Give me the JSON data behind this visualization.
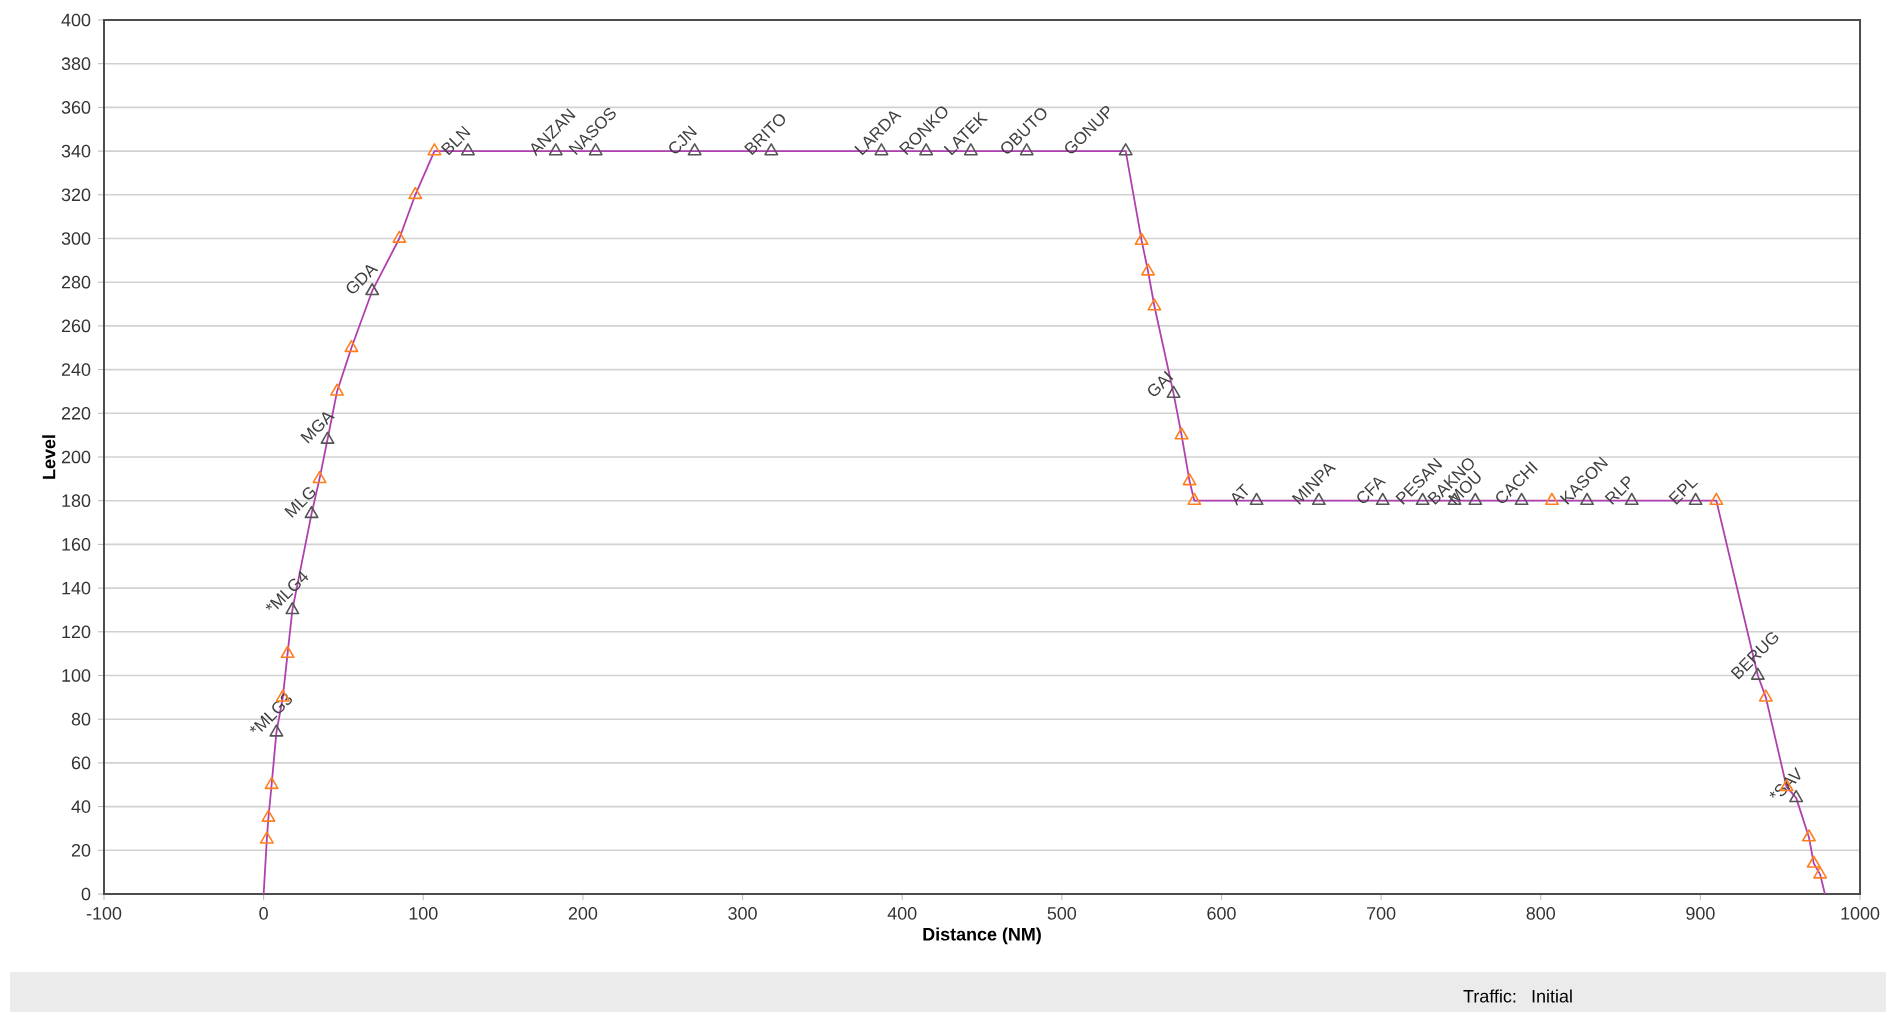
{
  "chart_data": {
    "type": "line",
    "xlabel": "Distance (NM)",
    "ylabel": "Level",
    "xlim": [
      -100,
      1000
    ],
    "xticks": [
      -100,
      0,
      100,
      200,
      300,
      400,
      500,
      600,
      700,
      800,
      900,
      1000
    ],
    "ylim": [
      0,
      400
    ],
    "yticks": [
      0,
      20,
      40,
      60,
      80,
      100,
      120,
      140,
      160,
      180,
      200,
      220,
      240,
      260,
      280,
      300,
      320,
      340,
      360,
      380,
      400
    ],
    "grid": "y",
    "series": [
      {
        "type": "line",
        "marker": "none",
        "color": "#b040b0",
        "x": [
          0,
          2,
          3,
          5,
          8,
          12,
          15,
          18,
          30,
          35,
          40,
          46,
          55,
          68,
          85,
          95,
          107,
          540,
          550,
          554,
          558,
          570,
          575,
          580,
          583,
          910,
          936,
          941,
          954,
          960,
          968,
          971,
          975,
          978
        ],
        "values": [
          0,
          25,
          35,
          50,
          74,
          90,
          110,
          130,
          174,
          190,
          208,
          230,
          250,
          276,
          300,
          320,
          340,
          340,
          299,
          285,
          269,
          229,
          210,
          189,
          180,
          180,
          100,
          90,
          49,
          44,
          26,
          14,
          9,
          0
        ]
      },
      {
        "type": "scatter",
        "marker": "triangle",
        "color": "#555555",
        "x": [
          8,
          18,
          30,
          40,
          68,
          128,
          183,
          208,
          270,
          318,
          387,
          415,
          443,
          478,
          540,
          570,
          622,
          661,
          701,
          726,
          746,
          759,
          788,
          829,
          857,
          897,
          936,
          960
        ],
        "values": [
          74,
          130,
          174,
          208,
          276,
          340,
          340,
          340,
          340,
          340,
          340,
          340,
          340,
          340,
          340,
          229,
          180,
          180,
          180,
          180,
          180,
          180,
          180,
          180,
          180,
          180,
          100,
          44
        ]
      },
      {
        "type": "scatter",
        "marker": "triangle",
        "color": "#ff7f1e",
        "x": [
          2,
          3,
          5,
          12,
          15,
          35,
          46,
          55,
          85,
          95,
          107,
          550,
          554,
          558,
          575,
          580,
          583,
          807,
          910,
          941,
          954,
          968,
          971,
          975
        ],
        "values": [
          25,
          35,
          50,
          90,
          110,
          190,
          230,
          250,
          300,
          320,
          340,
          299,
          285,
          269,
          210,
          189,
          180,
          180,
          180,
          90,
          49,
          26,
          14,
          9
        ]
      }
    ],
    "annotations": [
      {
        "text": "*MLG3",
        "x": 8,
        "y": 74
      },
      {
        "text": "*MLG4",
        "x": 18,
        "y": 130
      },
      {
        "text": "MLG",
        "x": 30,
        "y": 174
      },
      {
        "text": "MGA",
        "x": 40,
        "y": 208
      },
      {
        "text": "GDA",
        "x": 68,
        "y": 276
      },
      {
        "text": "BLN",
        "x": 128,
        "y": 340
      },
      {
        "text": "ANZAN",
        "x": 183,
        "y": 340
      },
      {
        "text": "NASOS",
        "x": 208,
        "y": 340
      },
      {
        "text": "CJN",
        "x": 270,
        "y": 340
      },
      {
        "text": "BRITO",
        "x": 318,
        "y": 340
      },
      {
        "text": "LARDA",
        "x": 387,
        "y": 340
      },
      {
        "text": "RONKO",
        "x": 415,
        "y": 340
      },
      {
        "text": "LATEK",
        "x": 443,
        "y": 340
      },
      {
        "text": "OBUTO",
        "x": 478,
        "y": 340
      },
      {
        "text": "GONUP",
        "x": 518,
        "y": 340
      },
      {
        "text": "GAI",
        "x": 570,
        "y": 229
      },
      {
        "text": "AT",
        "x": 622,
        "y": 180
      },
      {
        "text": "MINPA",
        "x": 661,
        "y": 180
      },
      {
        "text": "CFA",
        "x": 701,
        "y": 180
      },
      {
        "text": "PESAN",
        "x": 726,
        "y": 180
      },
      {
        "text": "BAKNO",
        "x": 746,
        "y": 180
      },
      {
        "text": "MOU",
        "x": 759,
        "y": 180
      },
      {
        "text": "CACHI",
        "x": 788,
        "y": 180
      },
      {
        "text": "KASON",
        "x": 829,
        "y": 180
      },
      {
        "text": "RLP",
        "x": 857,
        "y": 180
      },
      {
        "text": "EPL",
        "x": 897,
        "y": 180
      },
      {
        "text": "BERUG",
        "x": 936,
        "y": 100
      },
      {
        "text": "*SAV",
        "x": 960,
        "y": 44
      },
      "Traffic:",
      "Initial"
    ]
  }
}
